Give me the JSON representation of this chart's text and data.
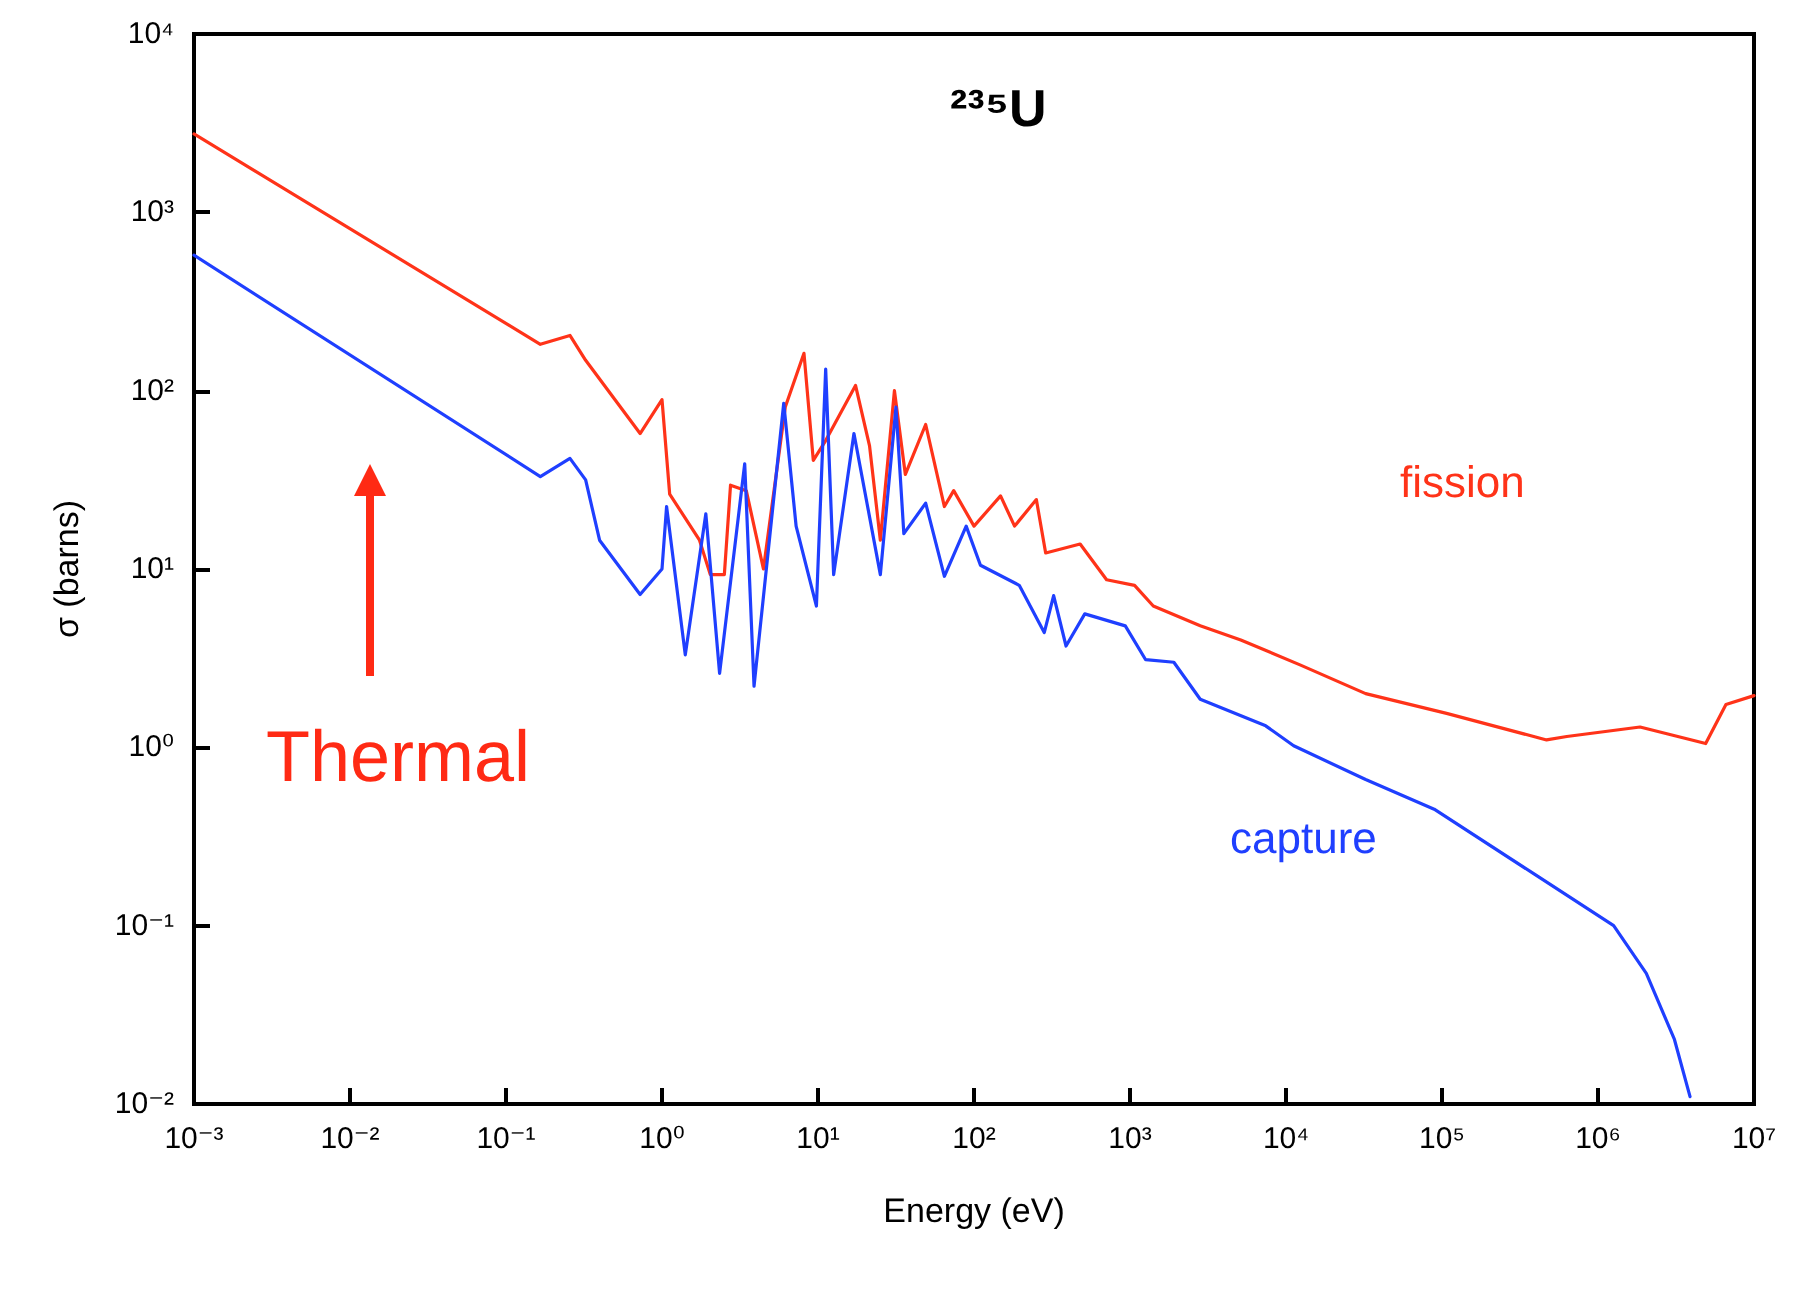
{
  "chart_data": {
    "type": "line",
    "title": "²³⁵U",
    "xlabel": "Energy (eV)",
    "ylabel": "σ (barns)",
    "log": "xy",
    "grid": false,
    "legend": false,
    "marker": "none",
    "line_style": "solid",
    "xlim": [
      0.001,
      10000000
    ],
    "ylim": [
      0.01,
      10000
    ],
    "xticks": [
      {
        "value": 0.001,
        "label": "10⁻³"
      },
      {
        "value": 0.01,
        "label": "10⁻²"
      },
      {
        "value": 0.1,
        "label": "10⁻¹"
      },
      {
        "value": 1,
        "label": "10⁰"
      },
      {
        "value": 10,
        "label": "10¹"
      },
      {
        "value": 100,
        "label": "10²"
      },
      {
        "value": 1000,
        "label": "10³"
      },
      {
        "value": 10000,
        "label": "10⁴"
      },
      {
        "value": 100000,
        "label": "10⁵"
      },
      {
        "value": 1000000,
        "label": "10⁶"
      },
      {
        "value": 10000000,
        "label": "10⁷"
      }
    ],
    "yticks": [
      {
        "value": 0.01,
        "label": "10⁻²"
      },
      {
        "value": 0.1,
        "label": "10⁻¹"
      },
      {
        "value": 1,
        "label": "10⁰"
      },
      {
        "value": 10,
        "label": "10¹"
      },
      {
        "value": 100,
        "label": "10²"
      },
      {
        "value": 1000,
        "label": "10³"
      },
      {
        "value": 10000,
        "label": "10⁴"
      }
    ],
    "annotations": [
      "Thermal"
    ],
    "series": [
      {
        "name": "fission",
        "color": "#ff3319",
        "x": [
          0.001,
          0.166,
          0.257,
          0.324,
          0.724,
          1.0,
          1.12,
          1.74,
          2.04,
          2.51,
          2.75,
          3.47,
          4.47,
          6.17,
          8.13,
          9.33,
          11.2,
          17.4,
          21.4,
          25.1,
          30.9,
          36.3,
          49,
          64.6,
          74.1,
          100,
          148,
          182,
          251,
          288,
          479,
          708,
          1070,
          1410,
          2820,
          5130,
          12300,
          32400,
          107000,
          468000,
          631000,
          1860000,
          4900000,
          6610000,
          10000000
        ],
        "values": [
          2750,
          182,
          204,
          148,
          57.5,
          89,
          26.3,
          14.5,
          9.3,
          9.3,
          29.5,
          27.5,
          10,
          81,
          162,
          40.7,
          52.5,
          107,
          49,
          14.5,
          100,
          33.9,
          64.6,
          22.4,
          27.5,
          17.4,
          25.7,
          17.4,
          24.5,
          12.3,
          13.8,
          8.7,
          8.1,
          6.2,
          4.8,
          4.0,
          2.9,
          2.0,
          1.55,
          1.1,
          1.15,
          1.3,
          1.05,
          1.74,
          1.95
        ]
      },
      {
        "name": "capture",
        "color": "#1f3fff",
        "x": [
          0.001,
          0.166,
          0.257,
          0.324,
          0.398,
          0.724,
          1.0,
          1.07,
          1.41,
          1.91,
          2.34,
          3.39,
          3.89,
          6.03,
          7.24,
          9.77,
          11.2,
          12.6,
          17.0,
          25.1,
          31.6,
          35.5,
          49,
          64.6,
          89.1,
          110,
          195,
          282,
          324,
          389,
          513,
          933,
          1260,
          1910,
          2820,
          7410,
          11200,
          32400,
          89100,
          389000,
          1260000,
          2040000,
          3090000,
          3890000
        ],
        "values": [
          575,
          33,
          41.7,
          31.6,
          14.5,
          7.2,
          10,
          22.4,
          3.3,
          20.4,
          2.6,
          38.9,
          2.2,
          85,
          17.4,
          6.2,
          132,
          9.3,
          57.5,
          9.3,
          81,
          15.8,
          23.4,
          9.1,
          17.4,
          10.5,
          8.1,
          4.4,
          7.1,
          3.7,
          5.6,
          4.8,
          3.1,
          3.0,
          1.86,
          1.32,
          1.02,
          0.66,
          0.45,
          0.195,
          0.1,
          0.054,
          0.023,
          0.011
        ]
      }
    ]
  }
}
